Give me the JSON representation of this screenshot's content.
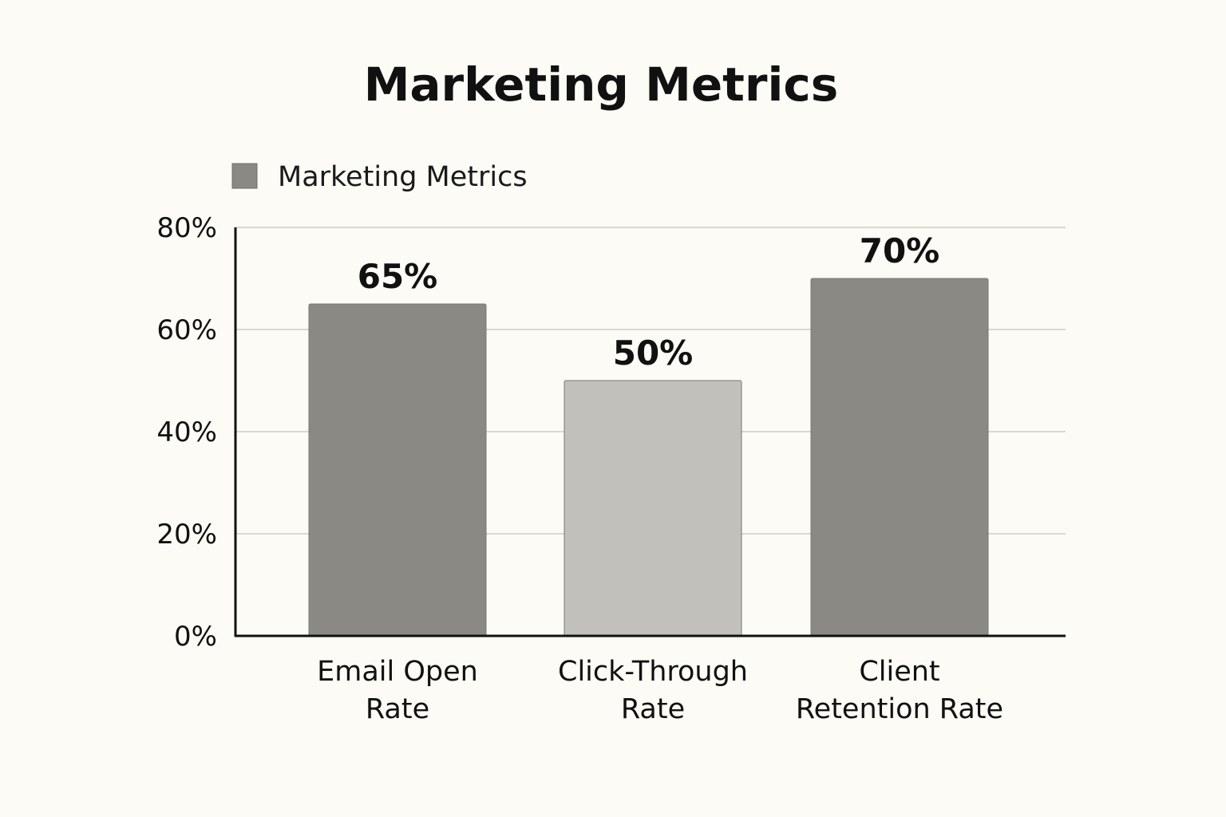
{
  "chart_data": {
    "type": "bar",
    "title": "Marketing Metrics",
    "categories": [
      "Email Open Rate",
      "Click-Through Rate",
      "Client Retention Rate"
    ],
    "category_label_lines": [
      [
        "Email Open",
        "Rate"
      ],
      [
        "Click-Through",
        "Rate"
      ],
      [
        "Client",
        "Retention Rate"
      ]
    ],
    "series": [
      {
        "name": "Marketing Metrics",
        "values": [
          65,
          50,
          70
        ],
        "data_labels": [
          "65%",
          "50%",
          "70%"
        ]
      }
    ],
    "legend": {
      "position": "top-left",
      "entries": [
        "Marketing Metrics"
      ]
    },
    "ylim": [
      0,
      80
    ],
    "yticks": [
      0,
      20,
      40,
      60,
      80
    ],
    "ytick_labels": [
      "0%",
      "20%",
      "40%",
      "60%",
      "80%"
    ],
    "xlabel": "",
    "ylabel": "",
    "grid": true,
    "colors": {
      "bars": [
        "#8a8984",
        "#c2c0bb",
        "#8a8984"
      ],
      "legend_swatch": "#8a8984",
      "grid": "#d9d8d3",
      "axis": "#111111",
      "background": "#fcfbf6"
    }
  }
}
